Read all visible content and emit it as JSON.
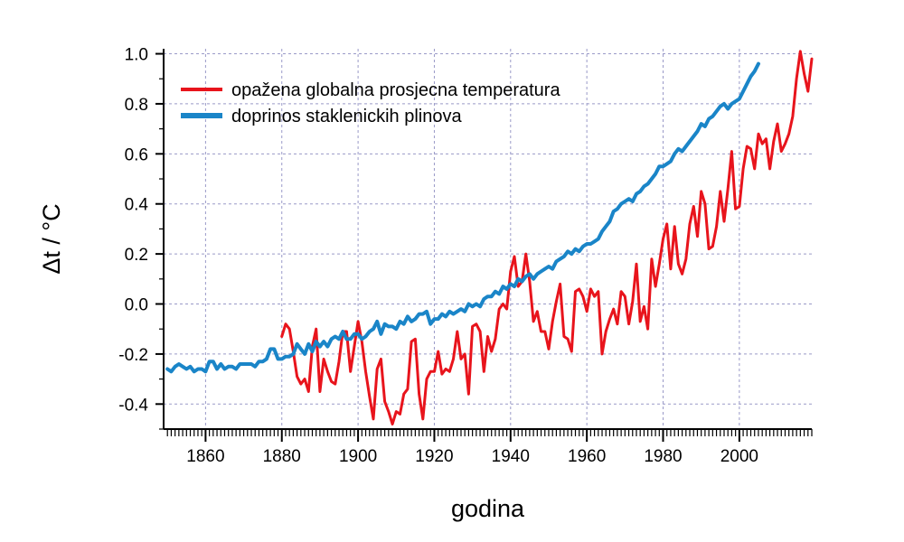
{
  "chart_data": {
    "type": "line",
    "title": "",
    "xlabel": "godina",
    "ylabel": "Δt / °C",
    "xlim": [
      1849,
      2019
    ],
    "ylim": [
      -0.5,
      1.02
    ],
    "x_ticks": [
      1860,
      1880,
      1900,
      1920,
      1940,
      1960,
      1980,
      2000
    ],
    "y_ticks": [
      -0.4,
      -0.2,
      0.0,
      0.2,
      0.4,
      0.6,
      0.8,
      1.0
    ],
    "x_tick_labels": [
      "1860",
      "1880",
      "1900",
      "1920",
      "1940",
      "1960",
      "1980",
      "2000"
    ],
    "y_tick_labels": [
      "-0.4",
      "-0.2",
      "0.0",
      "0.2",
      "0.4",
      "0.6",
      "0.8",
      "1.0"
    ],
    "grid": true,
    "legend_position": "top-left",
    "series": [
      {
        "name": "opažena globalna prosjecna temperatura",
        "color": "#e8141c",
        "x": [
          1880,
          1881,
          1882,
          1883,
          1884,
          1885,
          1886,
          1887,
          1888,
          1889,
          1890,
          1891,
          1892,
          1893,
          1894,
          1895,
          1896,
          1897,
          1898,
          1899,
          1900,
          1901,
          1902,
          1903,
          1904,
          1905,
          1906,
          1907,
          1908,
          1909,
          1910,
          1911,
          1912,
          1913,
          1914,
          1915,
          1916,
          1917,
          1918,
          1919,
          1920,
          1921,
          1922,
          1923,
          1924,
          1925,
          1926,
          1927,
          1928,
          1929,
          1930,
          1931,
          1932,
          1933,
          1934,
          1935,
          1936,
          1937,
          1938,
          1939,
          1940,
          1941,
          1942,
          1943,
          1944,
          1945,
          1946,
          1947,
          1948,
          1949,
          1950,
          1951,
          1952,
          1953,
          1954,
          1955,
          1956,
          1957,
          1958,
          1959,
          1960,
          1961,
          1962,
          1963,
          1964,
          1965,
          1966,
          1967,
          1968,
          1969,
          1970,
          1971,
          1972,
          1973,
          1974,
          1975,
          1976,
          1977,
          1978,
          1979,
          1980,
          1981,
          1982,
          1983,
          1984,
          1985,
          1986,
          1987,
          1988,
          1989,
          1990,
          1991,
          1992,
          1993,
          1994,
          1995,
          1996,
          1997,
          1998,
          1999,
          2000,
          2001,
          2002,
          2003,
          2004,
          2005,
          2006,
          2007,
          2008,
          2009,
          2010,
          2011,
          2012,
          2013,
          2014,
          2015,
          2016,
          2017,
          2018,
          2019
        ],
        "y": [
          -0.13,
          -0.08,
          -0.1,
          -0.19,
          -0.29,
          -0.32,
          -0.3,
          -0.35,
          -0.17,
          -0.1,
          -0.35,
          -0.22,
          -0.27,
          -0.31,
          -0.32,
          -0.23,
          -0.11,
          -0.11,
          -0.27,
          -0.17,
          -0.07,
          -0.15,
          -0.27,
          -0.37,
          -0.46,
          -0.26,
          -0.22,
          -0.39,
          -0.43,
          -0.48,
          -0.43,
          -0.44,
          -0.36,
          -0.34,
          -0.15,
          -0.14,
          -0.36,
          -0.46,
          -0.3,
          -0.27,
          -0.27,
          -0.19,
          -0.28,
          -0.26,
          -0.27,
          -0.22,
          -0.11,
          -0.22,
          -0.2,
          -0.36,
          -0.09,
          -0.08,
          -0.11,
          -0.27,
          -0.13,
          -0.19,
          -0.14,
          -0.02,
          -0.0,
          -0.02,
          0.13,
          0.19,
          0.07,
          0.09,
          0.2,
          0.09,
          -0.07,
          -0.03,
          -0.11,
          -0.11,
          -0.18,
          -0.07,
          0.01,
          0.08,
          -0.13,
          -0.14,
          -0.19,
          0.05,
          0.06,
          0.03,
          -0.03,
          0.06,
          0.03,
          0.05,
          -0.2,
          -0.11,
          -0.06,
          -0.02,
          -0.08,
          0.05,
          0.03,
          -0.08,
          0.01,
          0.16,
          -0.07,
          -0.01,
          -0.1,
          0.18,
          0.07,
          0.16,
          0.26,
          0.32,
          0.14,
          0.31,
          0.16,
          0.12,
          0.18,
          0.32,
          0.39,
          0.27,
          0.45,
          0.4,
          0.22,
          0.23,
          0.31,
          0.45,
          0.33,
          0.46,
          0.61,
          0.38,
          0.39,
          0.54,
          0.63,
          0.62,
          0.54,
          0.68,
          0.64,
          0.66,
          0.54,
          0.65,
          0.72,
          0.61,
          0.64,
          0.68,
          0.75,
          0.9,
          1.01,
          0.92,
          0.85,
          0.98
        ]
      },
      {
        "name": "doprinos staklenickih plinova",
        "color": "#1a85c8",
        "x": [
          1850,
          1851,
          1852,
          1853,
          1854,
          1855,
          1856,
          1857,
          1858,
          1859,
          1860,
          1861,
          1862,
          1863,
          1864,
          1865,
          1866,
          1867,
          1868,
          1869,
          1870,
          1871,
          1872,
          1873,
          1874,
          1875,
          1876,
          1877,
          1878,
          1879,
          1880,
          1881,
          1882,
          1883,
          1884,
          1885,
          1886,
          1887,
          1888,
          1889,
          1890,
          1891,
          1892,
          1893,
          1894,
          1895,
          1896,
          1897,
          1898,
          1899,
          1900,
          1901,
          1902,
          1903,
          1904,
          1905,
          1906,
          1907,
          1908,
          1909,
          1910,
          1911,
          1912,
          1913,
          1914,
          1915,
          1916,
          1917,
          1918,
          1919,
          1920,
          1921,
          1922,
          1923,
          1924,
          1925,
          1926,
          1927,
          1928,
          1929,
          1930,
          1931,
          1932,
          1933,
          1934,
          1935,
          1936,
          1937,
          1938,
          1939,
          1940,
          1941,
          1942,
          1943,
          1944,
          1945,
          1946,
          1947,
          1948,
          1949,
          1950,
          1951,
          1952,
          1953,
          1954,
          1955,
          1956,
          1957,
          1958,
          1959,
          1960,
          1961,
          1962,
          1963,
          1964,
          1965,
          1966,
          1967,
          1968,
          1969,
          1970,
          1971,
          1972,
          1973,
          1974,
          1975,
          1976,
          1977,
          1978,
          1979,
          1980,
          1981,
          1982,
          1983,
          1984,
          1985,
          1986,
          1987,
          1988,
          1989,
          1990,
          1991,
          1992,
          1993,
          1994,
          1995,
          1996,
          1997,
          1998,
          1999,
          2000,
          2001,
          2002,
          2003,
          2004,
          2005
        ],
        "y": [
          -0.26,
          -0.27,
          -0.25,
          -0.24,
          -0.25,
          -0.26,
          -0.25,
          -0.27,
          -0.26,
          -0.26,
          -0.27,
          -0.23,
          -0.23,
          -0.26,
          -0.24,
          -0.26,
          -0.25,
          -0.25,
          -0.26,
          -0.24,
          -0.24,
          -0.24,
          -0.24,
          -0.25,
          -0.23,
          -0.23,
          -0.22,
          -0.18,
          -0.18,
          -0.22,
          -0.22,
          -0.21,
          -0.21,
          -0.2,
          -0.16,
          -0.18,
          -0.2,
          -0.16,
          -0.19,
          -0.15,
          -0.17,
          -0.15,
          -0.17,
          -0.14,
          -0.13,
          -0.14,
          -0.11,
          -0.14,
          -0.14,
          -0.12,
          -0.12,
          -0.14,
          -0.13,
          -0.11,
          -0.1,
          -0.07,
          -0.12,
          -0.08,
          -0.09,
          -0.09,
          -0.1,
          -0.07,
          -0.08,
          -0.05,
          -0.07,
          -0.06,
          -0.04,
          -0.04,
          -0.03,
          -0.08,
          -0.06,
          -0.06,
          -0.04,
          -0.05,
          -0.03,
          -0.04,
          -0.03,
          -0.02,
          -0.03,
          0.0,
          -0.01,
          0.0,
          -0.01,
          0.02,
          0.03,
          0.03,
          0.05,
          0.04,
          0.07,
          0.06,
          0.08,
          0.07,
          0.1,
          0.09,
          0.11,
          0.12,
          0.1,
          0.12,
          0.13,
          0.14,
          0.15,
          0.14,
          0.17,
          0.18,
          0.19,
          0.21,
          0.2,
          0.22,
          0.21,
          0.23,
          0.24,
          0.24,
          0.25,
          0.26,
          0.29,
          0.31,
          0.33,
          0.37,
          0.38,
          0.4,
          0.41,
          0.42,
          0.41,
          0.44,
          0.45,
          0.47,
          0.48,
          0.5,
          0.52,
          0.55,
          0.55,
          0.56,
          0.57,
          0.6,
          0.62,
          0.61,
          0.63,
          0.65,
          0.67,
          0.69,
          0.72,
          0.71,
          0.74,
          0.75,
          0.77,
          0.79,
          0.8,
          0.78,
          0.8,
          0.81,
          0.82,
          0.85,
          0.88,
          0.91,
          0.93,
          0.96
        ]
      }
    ]
  }
}
